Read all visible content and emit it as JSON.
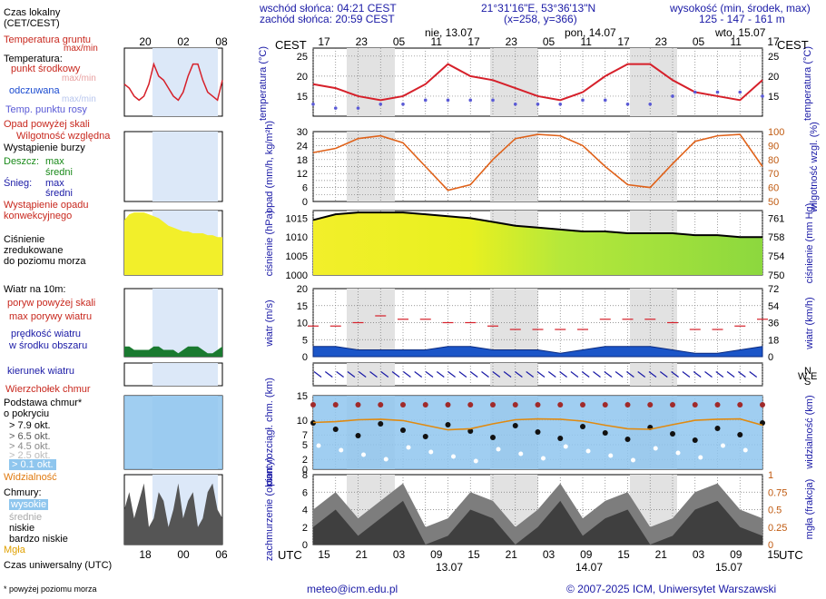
{
  "header": {
    "sunrise": "wschód słońca: 04:21 CEST",
    "sunset": "zachód słońca: 20:59 CEST",
    "coords": "21°31'16\"E, 53°36'13\"N",
    "grid": "(x=258, y=366)",
    "elev_label": "wysokość (min, środek, max)",
    "elev_values": "125 - 147 - 161 m",
    "cest": "CEST",
    "utc": "UTC",
    "days": [
      "nie, 13.07",
      "pon, 14.07",
      "wto, 15.07"
    ],
    "bottom_dates": [
      "13.07",
      "14.07",
      "15.07"
    ],
    "cest_hours": [
      "17",
      "23",
      "05",
      "11",
      "17",
      "23",
      "05",
      "11",
      "17",
      "23",
      "05",
      "11",
      "17"
    ],
    "utc_hours": [
      "15",
      "21",
      "03",
      "09",
      "15",
      "21",
      "03",
      "09",
      "15",
      "21",
      "03",
      "09",
      "15"
    ]
  },
  "legend": {
    "local_time": "Czas lokalny",
    "local_time2": "(CET/CEST)",
    "soil": "Temperatura gruntu",
    "soil_mm": "max/min",
    "temperature": "Temperatura:",
    "mid": "punkt środkowy",
    "maxmin": "max/min",
    "felt": "odczuwana",
    "felt_mm": "max/min",
    "dew": "Temp. punktu rosy",
    "precip_above": "Opad powyżej skali",
    "humidity": "Wilgotność względna",
    "storm": "Wystąpienie burzy",
    "rain": "Deszcz:",
    "rain_max": "max",
    "rain_mid": "średni",
    "snow": "Śnieg:",
    "snow_max": "max",
    "snow_mid": "średni",
    "conv": "Wystąpienie opadu",
    "conv2": "konwekcyjnego",
    "pressure": "Ciśnienie",
    "pressure2": "zredukowane",
    "pressure3": "do poziomu morza",
    "wind10": "Wiatr na 10m:",
    "gust_above": "poryw powyżej skali",
    "gust_max": "max porywy wiatru",
    "wind_speed": "prędkość wiatru",
    "wind_area": "w środku obszaru",
    "wind_dir": "kierunek wiatru",
    "cloud_top": "Wierzchołek chmur",
    "cloud_base": "Podstawa chmur*",
    "cloud_base2": "o pokryciu",
    "okt79": "> 7.9 okt.",
    "okt65": "> 6.5 okt.",
    "okt45": "> 4.5 okt.",
    "okt25": "> 2.5 okt.",
    "okt01": "> 0.1 okt.",
    "visibility": "Widzialność",
    "clouds": "Chmury:",
    "high": "wysokie",
    "mid_cl": "średnie",
    "low": "niskie",
    "vlow": "bardzo niskie",
    "fog": "Mgła",
    "utc_time": "Czas uniwersalny (UTC)",
    "footnote": "* powyżej poziomu morza",
    "top_hours": [
      "20",
      "02",
      "08"
    ],
    "bot_hours": [
      "18",
      "00",
      "06"
    ]
  },
  "axes": {
    "temperature": "temperatura (°C)",
    "precip": "opad (mm/h, kg/m²h)",
    "humidity": "wilgotność wzgl. (%)",
    "pressure": "ciśnienie (hPa)",
    "pressure_mmhg": "ciśnienie (mm Hg)",
    "wind": "wiatr (m/s)",
    "wind_kmh": "wiatr (km/h)",
    "clouds": "pion. rozciągł. chm. (km)",
    "visibility": "widzialność (km)",
    "coverage": "zachmurzenie (oktanty)",
    "fog": "mgła (frakcja)",
    "compass": [
      "N",
      "S",
      "W",
      "E"
    ]
  },
  "footer": {
    "email": "meteo@icm.edu.pl",
    "copyright": "© 2007-2025 ICM, Uniwersytet Warszawski"
  },
  "chart_data": {
    "type": "line",
    "hours_from_start": [
      0,
      3,
      6,
      9,
      12,
      15,
      18,
      21,
      24,
      27,
      30,
      33,
      36,
      39,
      42,
      45,
      48,
      51,
      54,
      57,
      60
    ],
    "temperature": {
      "ylim": [
        10,
        27
      ],
      "ticks": [
        15,
        20,
        25
      ],
      "values": [
        18,
        17,
        15,
        14,
        15,
        18,
        23,
        20,
        19,
        17,
        15,
        14,
        16,
        20,
        23,
        23,
        19,
        16,
        15,
        14,
        19
      ]
    },
    "dew_point": [
      13,
      12,
      12,
      13,
      13,
      14,
      14,
      14,
      14,
      13,
      13,
      13,
      14,
      14,
      13,
      13,
      15,
      16,
      16,
      16,
      15
    ],
    "humidity": {
      "ylim": [
        50,
        100
      ],
      "ticks": [
        50,
        60,
        70,
        80,
        90,
        100
      ],
      "values": [
        85,
        88,
        95,
        97,
        92,
        75,
        58,
        62,
        80,
        95,
        98,
        97,
        90,
        75,
        62,
        60,
        77,
        93,
        97,
        98,
        75
      ]
    },
    "precip": {
      "ylim": [
        0,
        30
      ],
      "ticks": [
        0,
        3,
        6,
        9,
        12,
        15,
        18,
        21,
        24,
        27,
        30
      ]
    },
    "pressure": {
      "ylim": [
        1000,
        1017
      ],
      "hpa_ticks": [
        1000,
        1005,
        1010,
        1015
      ],
      "mmhg_ticks": [
        750,
        754,
        758,
        761
      ],
      "values": [
        1014.5,
        1016,
        1016.5,
        1016.5,
        1016.5,
        1016,
        1015.5,
        1015,
        1014,
        1013,
        1012.5,
        1012,
        1011.5,
        1011.5,
        1011,
        1011,
        1011,
        1010.5,
        1010.5,
        1010,
        1010
      ]
    },
    "wind_speed": {
      "ylim": [
        0,
        20
      ],
      "ms_ticks": [
        5,
        10,
        15,
        20
      ],
      "kmh_ticks": [
        18,
        36,
        54,
        72
      ],
      "values": [
        3,
        3,
        2,
        2,
        2,
        2,
        3,
        3,
        2,
        2,
        2,
        1,
        2,
        3,
        3,
        3,
        2,
        1,
        1,
        2,
        3
      ]
    },
    "wind_gust": [
      9,
      9,
      10,
      12,
      11,
      11,
      10,
      10,
      9,
      8,
      8,
      8,
      8,
      11,
      11,
      11,
      10,
      8,
      8,
      9,
      11
    ],
    "cloud_range": {
      "ylim": [
        0,
        15
      ],
      "ticks": [
        0,
        2,
        5,
        7,
        10,
        15
      ],
      "vis_ticks": [
        0,
        1,
        2,
        5,
        10,
        20,
        100
      ]
    },
    "coverage": {
      "ylim": [
        0,
        8
      ],
      "ticks": [
        0,
        2,
        4,
        6,
        8
      ],
      "fog_ticks": [
        0,
        0.25,
        0.5,
        0.75,
        1
      ]
    }
  },
  "colors": {
    "temp": "#d6202a",
    "dew": "#5a5ad6",
    "humidity": "#e0621a",
    "pressure_fill": "#f2ef2a",
    "wind_fill": "#1b55c8",
    "label_blue": "#1a1aa6",
    "label_red": "#c8281e",
    "right_orange": "#c05a10",
    "cloud_bg": "#8fc6ee"
  }
}
